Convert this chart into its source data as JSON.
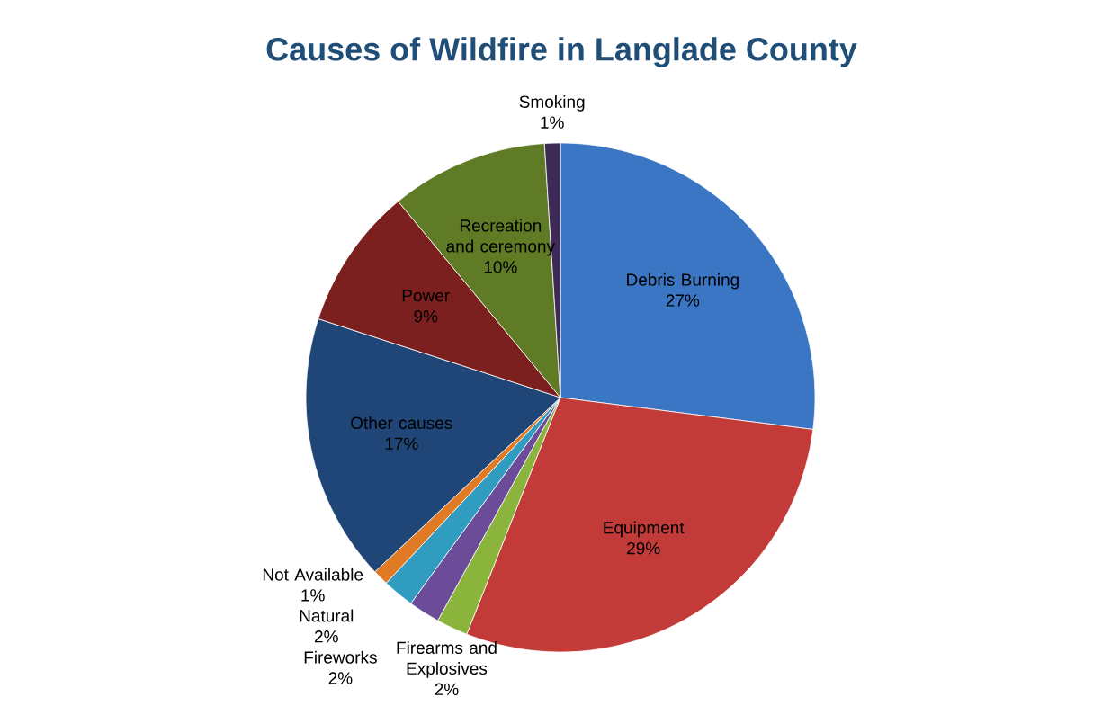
{
  "chart_data": {
    "type": "pie",
    "title": "Causes of Wildfire in Langlade County",
    "categories": [
      "Debris Burning",
      "Equipment",
      "Firearms and Explosives",
      "Fireworks",
      "Natural",
      "Not Available",
      "Other causes",
      "Power",
      "Recreation and ceremony",
      "Smoking"
    ],
    "values": [
      27,
      29,
      2,
      2,
      2,
      1,
      17,
      9,
      10,
      1
    ],
    "colors": [
      "#3a76c4",
      "#c23b38",
      "#8ab43c",
      "#6c4b98",
      "#2f9cc0",
      "#e07a25",
      "#1f4677",
      "#7b1f1f",
      "#5f7b26",
      "#3d2a57"
    ],
    "value_labels": [
      "27%",
      "29%",
      "2%",
      "2%",
      "2%",
      "1%",
      "17%",
      "9%",
      "10%",
      "1%"
    ]
  }
}
